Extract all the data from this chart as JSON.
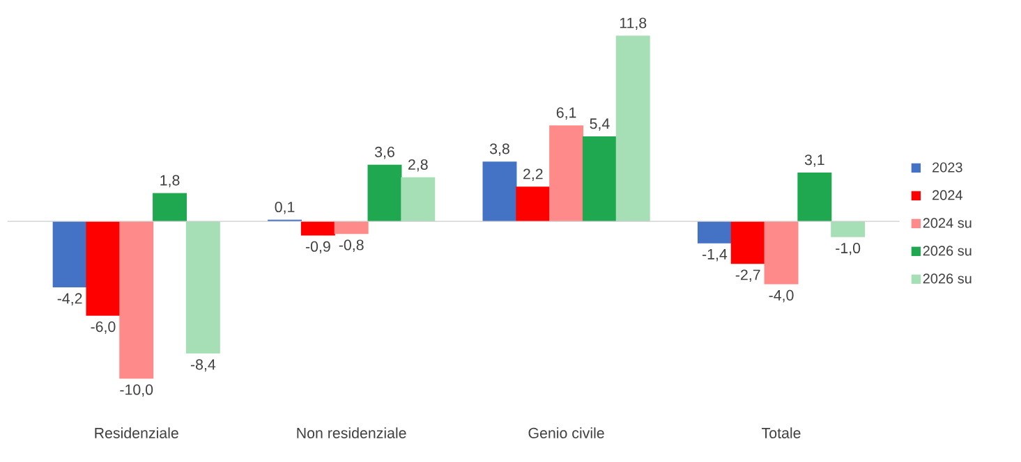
{
  "chart_data": {
    "type": "bar",
    "categories": [
      "Residenziale",
      "Non residenziale",
      "Genio civile",
      "Totale"
    ],
    "series": [
      {
        "name": "2023",
        "color": "#4472c4",
        "values": [
          -4.2,
          0.1,
          3.8,
          -1.4
        ],
        "value_labels": [
          "-4,2",
          "0,1",
          "3,8",
          "-1,4"
        ]
      },
      {
        "name": "2024",
        "color": "#ff0000",
        "values": [
          -6.0,
          -0.9,
          2.2,
          -2.7
        ],
        "value_labels": [
          "-6,0",
          "-0,9",
          "2,2",
          "-2,7"
        ]
      },
      {
        "name": "2024 su",
        "color": "#ff8a8a",
        "values": [
          -10.0,
          -0.8,
          6.1,
          -4.0
        ],
        "value_labels": [
          "-10,0",
          "-0,8",
          "6,1",
          "-4,0"
        ]
      },
      {
        "name": "2026 su",
        "color": "#1fa84f",
        "values": [
          1.8,
          3.6,
          5.4,
          3.1
        ],
        "value_labels": [
          "1,8",
          "3,6",
          "5,4",
          "3,1"
        ]
      },
      {
        "name": "2026 su",
        "color": "#a6dfb6",
        "values": [
          -8.4,
          2.8,
          11.8,
          -1.0
        ],
        "value_labels": [
          "-8,4",
          "2,8",
          "11,8",
          "-1,0"
        ]
      }
    ],
    "legend": "right"
  }
}
